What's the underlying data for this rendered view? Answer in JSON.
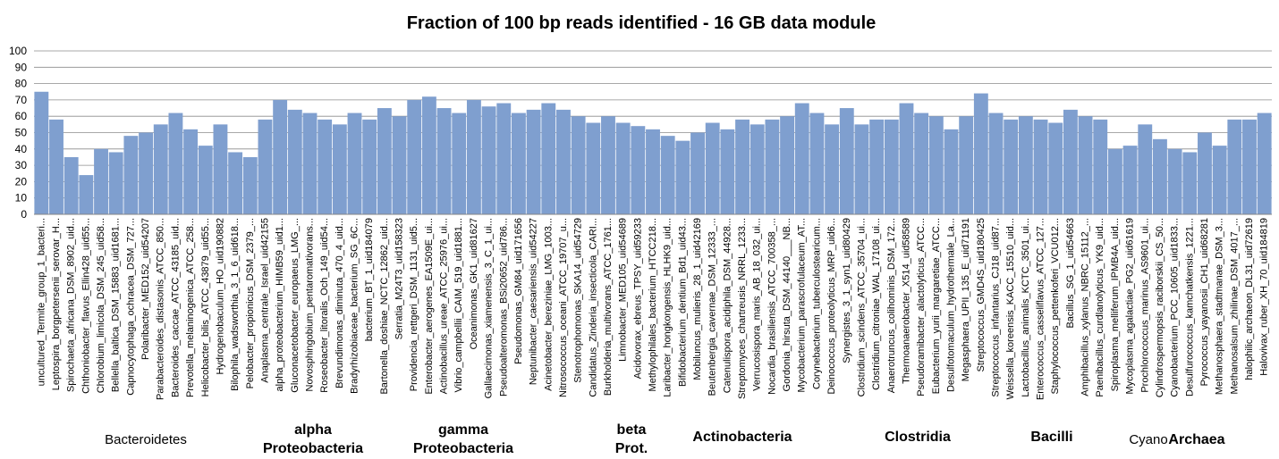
{
  "chart_data": {
    "type": "bar",
    "title": "Fraction of 100 bp reads identified - 16 GB data module",
    "xlabel": "",
    "ylabel": "",
    "ylim": [
      0,
      100
    ],
    "yticks": [
      0,
      10,
      20,
      30,
      40,
      50,
      60,
      70,
      80,
      90,
      100
    ],
    "grid": true,
    "legend": "none",
    "bar_color": "#7f9fcf",
    "categories": [
      "uncultured_Termite_group_1_bacteri...",
      "Leptospira_borgpetersenii_serovar_H...",
      "Spirochaeta_africana_DSM_8902_uid...",
      "Chthoniobacter_flavus_Ellin428_uid55...",
      "Chlorobium_limicola_DSM_245_uid58...",
      "Bellella_baltica_DSM_15883_uid1681...",
      "Capnocytophaga_ochracea_DSM_727...",
      "Polaribacter_MED152_uid54207",
      "Parabacteroides_distasonis_ATCC_850...",
      "Bacteroides_caccae_ATCC_43185_uid...",
      "Prevotella_melaninogenica_ATCC_258...",
      "Helicobacter_bilis_ATCC_43879_uid55...",
      "Hydrogenobaculum_HO_uid190882",
      "Bilophila_wadsworthia_3_1_6_uid618...",
      "Pelobacter_propionicus_DSM_2379_...",
      "Anaplasma_centrale_Israel_uid42155",
      "alpha_proteobacterium_HIMB59_uid1...",
      "Gluconacetobacter_europaeus_LMG_...",
      "Novosphingobium_pentaromativorans...",
      "Roseobacter_litoralis_Och_149_uid54...",
      "Brevundimonas_diminuta_470_4_uid...",
      "Bradyrhizobiaceae_bacterium_SG_6C...",
      "bacterium_BT_1_uid184079",
      "Bartonella_doshiae_NCTC_12862_uid...",
      "Serratia_M24T3_uid158323",
      "Providencia_rettgeri_DSM_1131_uid5...",
      "Enterobacter_aerogenes_EA1509E_ui...",
      "Actinobacillus_ureae_ATCC_25976_ui...",
      "Vibrio_campbellii_CAIM_519_uid1881...",
      "Oceanimonas_GK1_uid81627",
      "Gallaecimonas_xiamenensis_3_C_1_ui...",
      "Pseudoalteromonas_BSi20652_uid786...",
      "Pseudomonas_GM84_uid171656",
      "Neptunibacter_caesariensis_uid54227",
      "Acinetobacter_bereziniae_LMG_1003...",
      "Nitrosococcus_oceani_ATCC_19707_u...",
      "Stenotrophomonas_SKA14_uid54729",
      "Candidatus_Zinderia_insecticola_CARI...",
      "Burkholderia_multivorans_ATCC_1761...",
      "Limnobacter_MED105_uid54689",
      "Acidovorax_ebreus_TPSY_uid59233",
      "Methylophilales_bacterium_HTCC218...",
      "Laribacter_hongkongensis_HLHK9_uid...",
      "Bifidobacterium_dentium_Bd1_uid43...",
      "Mobiluncus_mulieris_28_1_uid42169",
      "Beutenbergia_cavernae_DSM_12333_...",
      "Catenulispora_acidiphila_DSM_44928...",
      "Streptomyces_chartreusis_NRRL_1233...",
      "Verrucosispora_maris_AB_18_032_ui...",
      "Nocardia_brasiliensis_ATCC_700358_...",
      "Gordonia_hirsuta_DSM_44140___NB...",
      "Mycobacterium_parascrofulaceum_AT...",
      "Corynebacterium_tuberculostearicum...",
      "Deinococcus_proteolyticus_MRP_uid6...",
      "Synergistes_3_1_syn1_uid80429",
      "Clostridium_scindens_ATCC_35704_ui...",
      "Clostridium_citroniae_WAL_17108_ui...",
      "Anaerotruncus_colihominis_DSM_172...",
      "Thermoanaerobacter_X514_uid58589",
      "Pseudoramibacter_alactolyticus_ATCC...",
      "Eubacterium_yurii_margaretiae_ATCC...",
      "Desulfotomaculum_hydrothermale_La...",
      "Megasphaera_UPII_135_E_uid71191",
      "Streptococcus_GMD4S_uid180425",
      "Streptococcus_infantarius_CJ18_uid87...",
      "Weissella_koreensis_KACC_15510_uid...",
      "Lactobacillus_animalis_KCTC_3501_ui...",
      "Enterococcus_casseliflavus_ATCC_127...",
      "Staphylococcus_pettenkoferi_VCU012...",
      "Bacillus_SG_1_uid54663",
      "Amphibacillus_xylanus_NBRC_15112_...",
      "Paenibacillus_curdlanolyticus_YK9_uid...",
      "Spiroplasma_melliferum_IPMB4A_uid...",
      "Mycoplasma_agalactiae_PG2_uid61619",
      "Prochlorococcus_marinus_AS9601_ui...",
      "Cylindrospermopsis_raciborskii_CS_50...",
      "Cyanobacterium_PCC_10605_uid1833...",
      "Desulfurococcus_kamchatkensis_1221...",
      "Pyrococcus_yayanosii_CH1_uid68281",
      "Methanosphaera_stadtmanae_DSM_3...",
      "Methanosalsum_zhilinae_DSM_4017_...",
      "halophilic_archaeon_DL31_uid72619",
      "Halovivax_ruber_XH_70_uid184819"
    ],
    "values": [
      75,
      58,
      35,
      24,
      40,
      38,
      48,
      50,
      55,
      62,
      52,
      42,
      55,
      38,
      35,
      58,
      70,
      64,
      62,
      58,
      55,
      62,
      58,
      65,
      60,
      70,
      72,
      65,
      62,
      70,
      66,
      68,
      62,
      64,
      68,
      64,
      60,
      56,
      60,
      56,
      54,
      52,
      48,
      45,
      50,
      56,
      52,
      58,
      55,
      58,
      60,
      68,
      62,
      55,
      65,
      55,
      58,
      58,
      68,
      62,
      60,
      52,
      60,
      74,
      62,
      58,
      60,
      58,
      56,
      64,
      60,
      58,
      40,
      42,
      55,
      46,
      40,
      38,
      50,
      42,
      58,
      58,
      62
    ],
    "groups": [
      {
        "label": "Bacteroidetes",
        "style": "plain"
      },
      {
        "label": "alpha",
        "label2": "Proteobacteria",
        "style": "bold"
      },
      {
        "label": "gamma",
        "label2": "Proteobacteria",
        "style": "bold"
      },
      {
        "label": "beta",
        "label2": "Prot.",
        "style": "bold"
      },
      {
        "label": "Actinobacteria",
        "style": "bold"
      },
      {
        "label": "Clostridia",
        "style": "bold"
      },
      {
        "label": "Bacilli",
        "style": "bold"
      },
      {
        "label": "Cyano",
        "style": "plain"
      },
      {
        "label": "Archaea",
        "style": "bold"
      }
    ]
  }
}
